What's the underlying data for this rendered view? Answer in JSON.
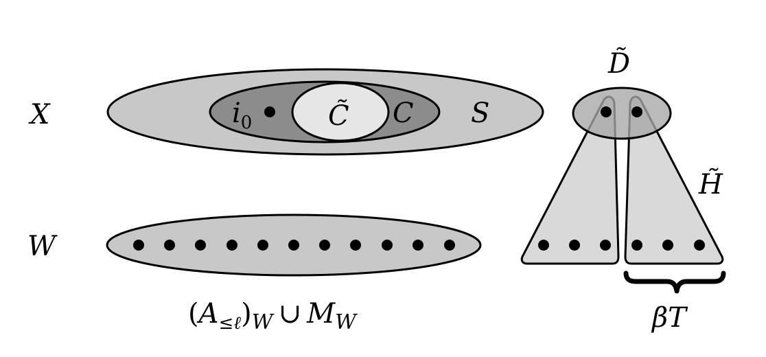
{
  "labels": {
    "X": "X",
    "W": "W",
    "S": "S",
    "C": "C",
    "C_tilde": "C̃",
    "i0_base": "i",
    "i0_sub": "0",
    "D_tilde": "D̃",
    "H_tilde": "H̃",
    "beta_T": "βT",
    "union_expr": {
      "open_paren": "(",
      "A": "A",
      "A_sub": "≤ℓ",
      "close_paren": ")",
      "sub_W_1": "W",
      "cup": "∪",
      "M": "M",
      "sub_W_2": "W"
    }
  },
  "colors": {
    "outer_fill": "#c8c8c8",
    "C_fill": "#8c8c8c",
    "C_tilde_fill": "#e6e6e6",
    "triangle_fill": "#d9d9d9",
    "D_fill": "#a6a6a6",
    "stroke": "#000000"
  }
}
